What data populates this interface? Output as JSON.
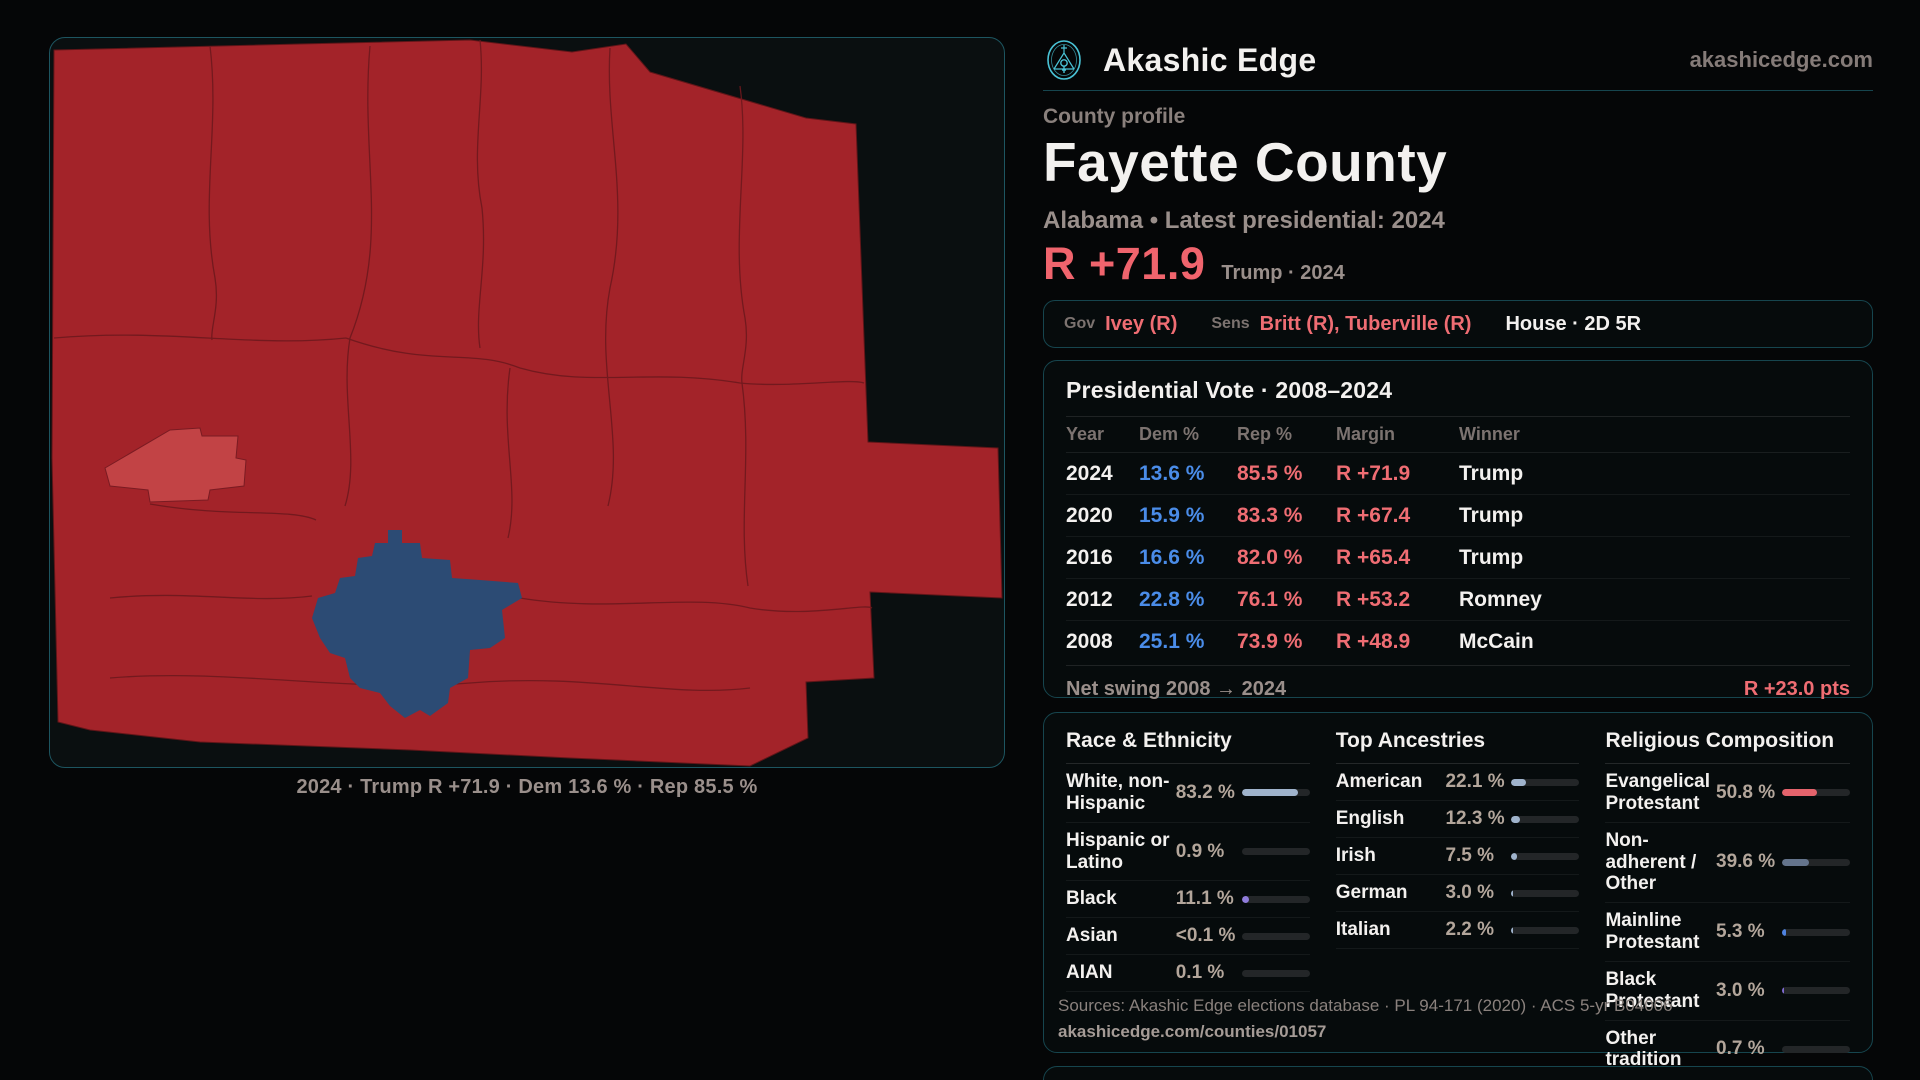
{
  "site": {
    "brand": "Akashic Edge",
    "domain": "akashicedge.com"
  },
  "page": {
    "kicker": "County profile",
    "title": "Fayette County",
    "subtitle": "Alabama • Latest presidential: 2024",
    "big_margin": "R +71.9",
    "big_context": "Trump · 2024"
  },
  "officials": {
    "gov_label": "Gov",
    "gov_value": "Ivey (R)",
    "sens_label": "Sens",
    "sens_value": "Britt (R), Tuberville (R)",
    "house_value": "House · 2D 5R"
  },
  "vote_table": {
    "title": "Presidential Vote · 2008–2024",
    "columns": [
      "Year",
      "Dem %",
      "Rep %",
      "Margin",
      "Winner"
    ],
    "rows": [
      {
        "year": "2024",
        "dem": "13.6 %",
        "rep": "85.5 %",
        "margin": "R +71.9",
        "winner": "Trump"
      },
      {
        "year": "2020",
        "dem": "15.9 %",
        "rep": "83.3 %",
        "margin": "R +67.4",
        "winner": "Trump"
      },
      {
        "year": "2016",
        "dem": "16.6 %",
        "rep": "82.0 %",
        "margin": "R +65.4",
        "winner": "Trump"
      },
      {
        "year": "2012",
        "dem": "22.8 %",
        "rep": "76.1 %",
        "margin": "R +53.2",
        "winner": "Romney"
      },
      {
        "year": "2008",
        "dem": "25.1 %",
        "rep": "73.9 %",
        "margin": "R +48.9",
        "winner": "McCain"
      }
    ],
    "footer_label": "Net swing 2008 → 2024",
    "footer_value": "R +23.0 pts"
  },
  "demographics": {
    "race": {
      "title": "Race & Ethnicity",
      "rows": [
        {
          "label": "White, non-Hispanic",
          "value": "83.2 %",
          "pct": 83.2,
          "color": "#9fb3cc"
        },
        {
          "label": "Hispanic or Latino",
          "value": "0.9 %",
          "pct": 0.9,
          "color": "#9fb3cc"
        },
        {
          "label": "Black",
          "value": "11.1 %",
          "pct": 11.1,
          "color": "#8f7cdb"
        },
        {
          "label": "Asian",
          "value": "<0.1 %",
          "pct": 0,
          "color": "#9fb3cc"
        },
        {
          "label": "AIAN",
          "value": "0.1 %",
          "pct": 0.1,
          "color": "#9fb3cc"
        }
      ]
    },
    "ancestry": {
      "title": "Top Ancestries",
      "rows": [
        {
          "label": "American",
          "value": "22.1 %",
          "pct": 22.1,
          "color": "#9fb3cc"
        },
        {
          "label": "English",
          "value": "12.3 %",
          "pct": 12.3,
          "color": "#9fb3cc"
        },
        {
          "label": "Irish",
          "value": "7.5 %",
          "pct": 7.5,
          "color": "#9fb3cc"
        },
        {
          "label": "German",
          "value": "3.0 %",
          "pct": 3.0,
          "color": "#9fb3cc"
        },
        {
          "label": "Italian",
          "value": "2.2 %",
          "pct": 2.2,
          "color": "#9fb3cc"
        }
      ]
    },
    "religion": {
      "title": "Religious Composition",
      "rows": [
        {
          "label": "Evangelical Protestant",
          "value": "50.8 %",
          "pct": 50.8,
          "color": "#e4636c"
        },
        {
          "label": "Non-adherent / Other",
          "value": "39.6 %",
          "pct": 39.6,
          "color": "#64748c"
        },
        {
          "label": "Mainline Protestant",
          "value": "5.3 %",
          "pct": 5.3,
          "color": "#4f83e0"
        },
        {
          "label": "Black Protestant",
          "value": "3.0 %",
          "pct": 3.0,
          "color": "#7f6ad0"
        },
        {
          "label": "Other tradition",
          "value": "0.7 %",
          "pct": 0.7,
          "color": "#aab2b8"
        }
      ]
    }
  },
  "sources": {
    "line1": "Sources: Akashic Edge elections database · PL 94-171 (2020) · ACS 5-yr B04006",
    "line2": "akashicedge.com/counties/01057"
  },
  "map": {
    "caption": "2024 · Trump R +71.9 · Dem 13.6 % · Rep 85.5 %"
  },
  "colors": {
    "accent_teal": "#4ac3d6",
    "rep_red": "#ef6d73",
    "dem_blue": "#4a8ce8",
    "map_red": "#a32329",
    "map_red_highlight": "#c24345",
    "map_blue": "#2c4b74",
    "panel_border": "#16454e"
  }
}
